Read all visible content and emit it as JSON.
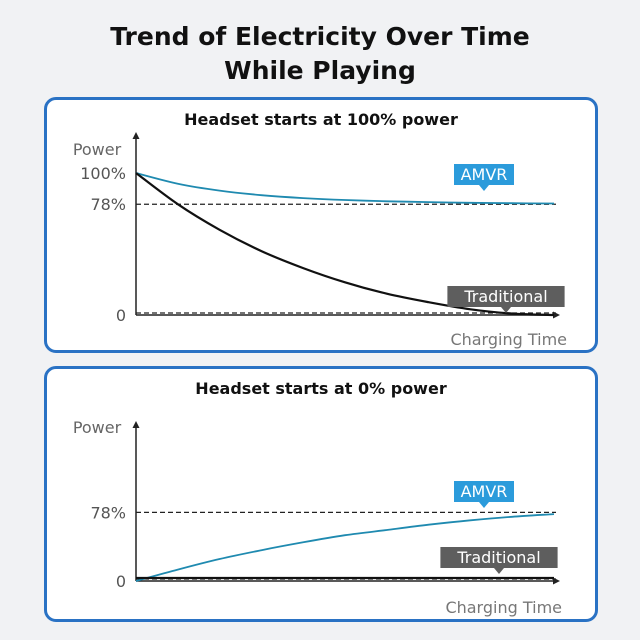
{
  "title": {
    "line1": "Trend of Electricity Over Time",
    "line2": "While Playing"
  },
  "colors": {
    "panel_border": "#2a72c4",
    "amvr": "#1f8ab0",
    "amvr_label": "#2b9bdb",
    "traditional": "#111111",
    "traditional_label": "#5e5e5e"
  },
  "chart_data": [
    {
      "type": "line",
      "title": "Headset starts at 100% power",
      "ylabel": "Power",
      "xlabel": "Charging Time",
      "ylim": [
        0,
        100
      ],
      "xlim": [
        0,
        10
      ],
      "yticks": [
        {
          "value": 100,
          "label": "100%"
        },
        {
          "value": 78,
          "label": "78%"
        },
        {
          "value": 0,
          "label": "0"
        }
      ],
      "reference_lines": [
        78,
        0
      ],
      "series": [
        {
          "name": "AMVR",
          "x": [
            0,
            1,
            2,
            3,
            4,
            5,
            6,
            7,
            8,
            9,
            10
          ],
          "values": [
            100,
            92.5,
            87.6,
            84.4,
            82.3,
            81,
            80.1,
            79.5,
            79,
            78.7,
            78.5
          ]
        },
        {
          "name": "Traditional",
          "x": [
            0,
            1,
            2,
            3,
            4,
            5,
            6,
            7,
            8,
            9,
            10
          ],
          "values": [
            100,
            78,
            60,
            45,
            33,
            23,
            15,
            9,
            4,
            1,
            0
          ]
        }
      ]
    },
    {
      "type": "line",
      "title": "Headset starts at 0% power",
      "ylabel": "Power",
      "xlabel": "Charging Time",
      "ylim": [
        0,
        100
      ],
      "xlim": [
        0,
        10
      ],
      "yticks": [
        {
          "value": 78,
          "label": "78%"
        },
        {
          "value": 0,
          "label": "0"
        }
      ],
      "reference_lines": [
        78,
        0
      ],
      "series": [
        {
          "name": "AMVR",
          "x": [
            0,
            1,
            2,
            3,
            4,
            5,
            6,
            7,
            8,
            9,
            10
          ],
          "values": [
            0,
            13,
            25,
            35,
            44,
            52,
            58,
            64,
            69,
            73,
            76
          ]
        },
        {
          "name": "Traditional",
          "x": [
            0,
            1,
            2,
            3,
            4,
            5,
            6,
            7,
            8,
            9,
            10
          ],
          "values": [
            0,
            0,
            0,
            0,
            0,
            0,
            0,
            0,
            0,
            0,
            0
          ]
        }
      ]
    }
  ]
}
